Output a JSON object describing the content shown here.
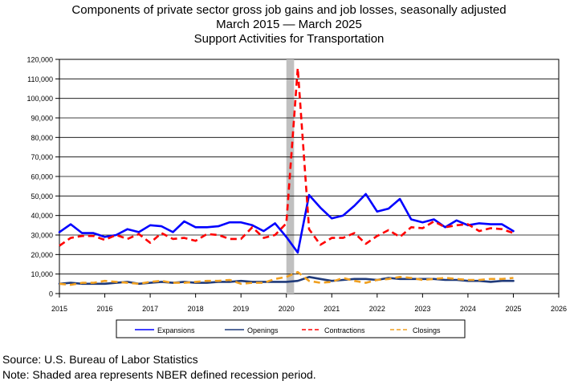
{
  "chart_data": {
    "type": "line",
    "title": "Components of private sector gross job gains and job losses, seasonally adjusted",
    "subtitle_dates": "March 2015 — March 2025",
    "subtitle_industry": "Support Activities for Transportation",
    "xlabel": "",
    "ylabel": "",
    "xlim": [
      2015,
      2026
    ],
    "ylim": [
      0,
      120000
    ],
    "x_ticks": [
      "2015",
      "2016",
      "2017",
      "2018",
      "2019",
      "2020",
      "2021",
      "2022",
      "2023",
      "2024",
      "2025",
      "2026"
    ],
    "y_ticks": [
      "0",
      "10,000",
      "20,000",
      "30,000",
      "40,000",
      "50,000",
      "60,000",
      "70,000",
      "80,000",
      "90,000",
      "100,000",
      "110,000",
      "120,000"
    ],
    "grid": "horizontal",
    "legend_position": "bottom",
    "recession_shading": {
      "start": 2020.0,
      "end": 2020.17
    },
    "series": [
      {
        "name": "Expansions",
        "color": "#0000ff",
        "style": "solid",
        "x": [
          2015.0,
          2015.25,
          2015.5,
          2015.75,
          2016.0,
          2016.25,
          2016.5,
          2016.75,
          2017.0,
          2017.25,
          2017.5,
          2017.75,
          2018.0,
          2018.25,
          2018.5,
          2018.75,
          2019.0,
          2019.25,
          2019.5,
          2019.75,
          2020.0,
          2020.25,
          2020.5,
          2020.75,
          2021.0,
          2021.25,
          2021.5,
          2021.75,
          2022.0,
          2022.25,
          2022.5,
          2022.75,
          2023.0,
          2023.25,
          2023.5,
          2023.75,
          2024.0,
          2024.25,
          2024.5,
          2024.75,
          2025.0
        ],
        "values": [
          31500,
          35500,
          31000,
          31000,
          29000,
          30000,
          33000,
          31500,
          35000,
          34500,
          31500,
          37000,
          34000,
          34000,
          34500,
          36500,
          36500,
          35000,
          32000,
          36000,
          29000,
          21000,
          50500,
          44000,
          38500,
          40000,
          45000,
          51000,
          42000,
          43500,
          48500,
          38000,
          36500,
          38000,
          34000,
          37500,
          35000,
          36000,
          35500,
          35500,
          32000
        ]
      },
      {
        "name": "Openings",
        "color": "#1f3a7a",
        "style": "solid",
        "x": [
          2015.0,
          2015.25,
          2015.5,
          2015.75,
          2016.0,
          2016.25,
          2016.5,
          2016.75,
          2017.0,
          2017.25,
          2017.5,
          2017.75,
          2018.0,
          2018.25,
          2018.5,
          2018.75,
          2019.0,
          2019.25,
          2019.5,
          2019.75,
          2020.0,
          2020.25,
          2020.5,
          2020.75,
          2021.0,
          2021.25,
          2021.5,
          2021.75,
          2022.0,
          2022.25,
          2022.5,
          2022.75,
          2023.0,
          2023.25,
          2023.5,
          2023.75,
          2024.0,
          2024.25,
          2024.5,
          2024.75,
          2025.0
        ],
        "values": [
          5000,
          5500,
          5000,
          5000,
          5000,
          5500,
          6000,
          5000,
          5500,
          6000,
          5500,
          6000,
          5500,
          5500,
          6000,
          6000,
          6500,
          6000,
          6000,
          6000,
          6000,
          6500,
          8500,
          7500,
          6500,
          7000,
          7500,
          7500,
          7000,
          8000,
          7500,
          7500,
          7500,
          7500,
          7000,
          7000,
          6500,
          6500,
          6000,
          6500,
          6500
        ]
      },
      {
        "name": "Contractions",
        "color": "#ff0000",
        "style": "dashed",
        "x": [
          2015.0,
          2015.25,
          2015.5,
          2015.75,
          2016.0,
          2016.25,
          2016.5,
          2016.75,
          2017.0,
          2017.25,
          2017.5,
          2017.75,
          2018.0,
          2018.25,
          2018.5,
          2018.75,
          2019.0,
          2019.25,
          2019.5,
          2019.75,
          2020.0,
          2020.25,
          2020.5,
          2020.75,
          2021.0,
          2021.25,
          2021.5,
          2021.75,
          2022.0,
          2022.25,
          2022.5,
          2022.75,
          2023.0,
          2023.25,
          2023.5,
          2023.75,
          2024.0,
          2024.25,
          2024.5,
          2024.75,
          2025.0
        ],
        "values": [
          24500,
          28500,
          29500,
          29500,
          27500,
          30000,
          28000,
          30500,
          26000,
          31000,
          28000,
          28500,
          27000,
          30500,
          30000,
          28000,
          28000,
          34000,
          28500,
          30000,
          36000,
          115500,
          33000,
          25000,
          28500,
          28500,
          31000,
          25500,
          29500,
          32500,
          29000,
          34000,
          33500,
          37000,
          34000,
          35000,
          35500,
          32000,
          33500,
          33000,
          31000
        ]
      },
      {
        "name": "Closings",
        "color": "#f0a020",
        "style": "dashed",
        "x": [
          2015.0,
          2015.25,
          2015.5,
          2015.75,
          2016.0,
          2016.25,
          2016.5,
          2016.75,
          2017.0,
          2017.25,
          2017.5,
          2017.75,
          2018.0,
          2018.25,
          2018.5,
          2018.75,
          2019.0,
          2019.25,
          2019.5,
          2019.75,
          2020.0,
          2020.25,
          2020.5,
          2020.75,
          2021.0,
          2021.25,
          2021.5,
          2021.75,
          2022.0,
          2022.25,
          2022.5,
          2022.75,
          2023.0,
          2023.25,
          2023.5,
          2023.75,
          2024.0,
          2024.25,
          2024.5,
          2024.75,
          2025.0
        ],
        "values": [
          5000,
          4500,
          5500,
          5500,
          6500,
          6000,
          5500,
          5000,
          6000,
          6500,
          5500,
          5500,
          6000,
          6500,
          6500,
          7000,
          5000,
          5500,
          5500,
          7500,
          8500,
          11000,
          6500,
          5500,
          6000,
          8000,
          6500,
          5500,
          7000,
          7500,
          8500,
          8000,
          7000,
          7500,
          8000,
          7500,
          7000,
          7000,
          7500,
          7500,
          8000
        ]
      }
    ]
  },
  "footer": {
    "source": "Source: U.S. Bureau of Labor Statistics",
    "note": "Note: Shaded area represents NBER defined recession period."
  }
}
